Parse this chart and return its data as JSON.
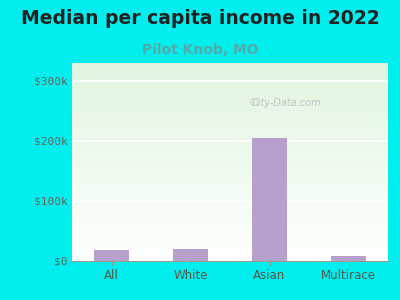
{
  "title": "Median per capita income in 2022",
  "subtitle": "Pilot Knob, MO",
  "categories": [
    "All",
    "White",
    "Asian",
    "Multirace"
  ],
  "values": [
    18000,
    20000,
    205000,
    8000
  ],
  "bar_color": "#b8a0cc",
  "title_fontsize": 13.5,
  "subtitle_fontsize": 10,
  "subtitle_color": "#55aaaa",
  "title_color": "#222222",
  "background_outer": "#00eeee",
  "yticks": [
    0,
    100000,
    200000,
    300000
  ],
  "ytick_labels": [
    "$0",
    "$100k",
    "$200k",
    "$300k"
  ],
  "ylim": [
    0,
    330000
  ],
  "tick_color": "#666655",
  "watermark": "City-Data.com",
  "xlabel_color": "#555544"
}
